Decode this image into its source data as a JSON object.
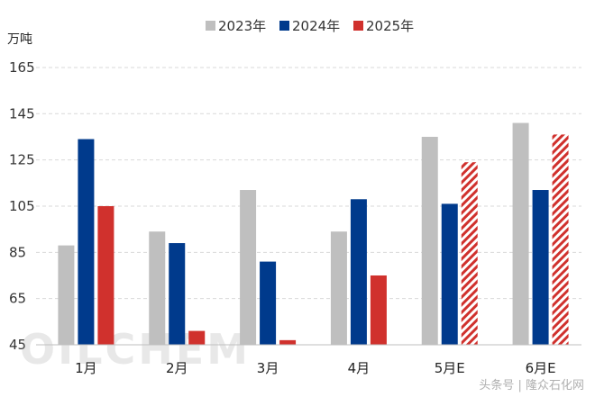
{
  "chart_data": {
    "type": "bar",
    "unit_label": "万吨",
    "categories": [
      "1月",
      "2月",
      "3月",
      "4月",
      "5月E",
      "6月E"
    ],
    "series": [
      {
        "name": "2023年",
        "color": "#bfbfbf",
        "values": [
          88,
          94,
          112,
          94,
          135,
          141
        ]
      },
      {
        "name": "2024年",
        "color": "#003a8c",
        "values": [
          134,
          89,
          81,
          108,
          106,
          112
        ]
      },
      {
        "name": "2025年",
        "color": "#d0312d",
        "values": [
          105,
          51,
          47,
          75,
          124,
          136
        ]
      }
    ],
    "estimated_categories": [
      "5月E",
      "6月E"
    ],
    "estimate_pattern": "red-white diagonal hatch for 2025年",
    "y_ticks": [
      45,
      65,
      85,
      105,
      125,
      145,
      165
    ],
    "ylim": [
      45,
      172
    ],
    "grid": true,
    "legend_position": "top-center"
  },
  "watermark": "OILCHEM",
  "footer_source": "头条号 | 隆众石化网"
}
